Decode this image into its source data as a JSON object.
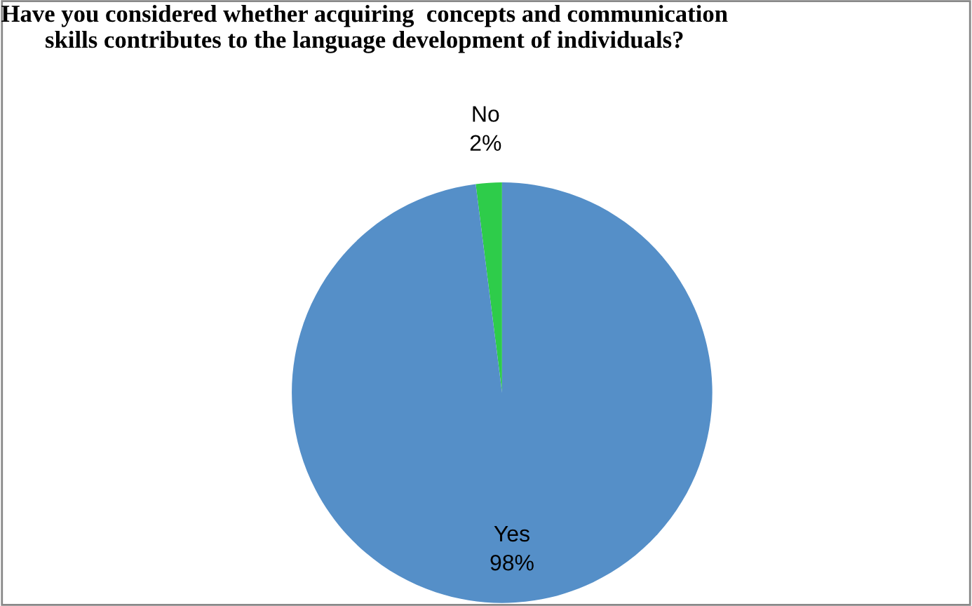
{
  "chart_data": {
    "type": "pie",
    "title": "Have you considered whether acquiring  concepts and communication skills contributes to the language development of individuals?",
    "categories": [
      "No",
      "Yes"
    ],
    "values": [
      2,
      98
    ],
    "colors": [
      "#2ecc4a",
      "#558fc8"
    ],
    "value_labels": [
      "2%",
      "98%"
    ],
    "legend": false
  }
}
